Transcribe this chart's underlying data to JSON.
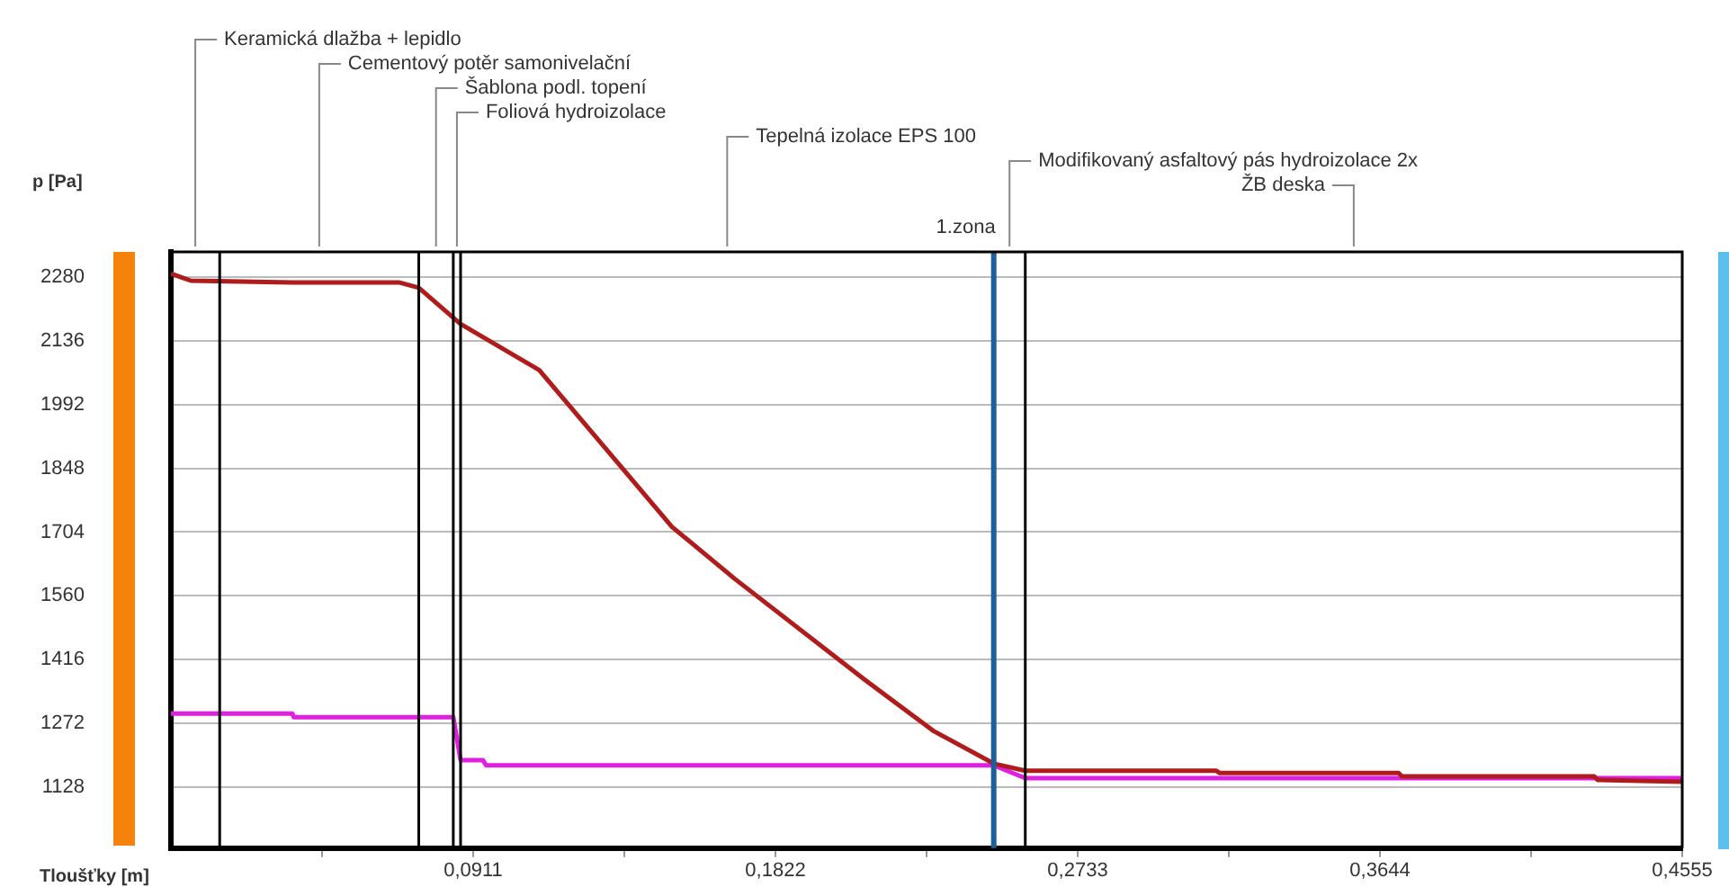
{
  "chart_data": {
    "type": "line",
    "xlabel": "Tloušťky [m]",
    "ylabel": "p [Pa]",
    "xlim": [
      0,
      0.4555
    ],
    "ylim": [
      990,
      2337
    ],
    "xticks": [
      {
        "value": 0.04555,
        "label": null
      },
      {
        "value": 0.0911,
        "label": "0,0911"
      },
      {
        "value": 0.13665,
        "label": null
      },
      {
        "value": 0.1822,
        "label": "0,1822"
      },
      {
        "value": 0.22775,
        "label": null
      },
      {
        "value": 0.2733,
        "label": "0,2733"
      },
      {
        "value": 0.31885,
        "label": null
      },
      {
        "value": 0.3644,
        "label": "0,3644"
      },
      {
        "value": 0.40995,
        "label": null
      },
      {
        "value": 0.4555,
        "label": "0,4555"
      }
    ],
    "yticks": [
      1128,
      1272,
      1416,
      1560,
      1704,
      1848,
      1992,
      2136,
      2280
    ],
    "grid": "y",
    "legend": false,
    "marker": "none",
    "line_style": "solid",
    "series": [
      {
        "color": "#b01c1c",
        "x": [
          0,
          0.003,
          0.006,
          0.0366,
          0.0687,
          0.0747,
          0.0873,
          0.111,
          0.151,
          0.17,
          0.209,
          0.23,
          0.248,
          0.2575,
          0.315,
          0.316,
          0.37,
          0.371,
          0.429,
          0.43,
          0.4555
        ],
        "values": [
          2288,
          2280,
          2272,
          2268,
          2268,
          2256,
          2174,
          2070,
          1716,
          1598,
          1371,
          1254,
          1181,
          1165,
          1165,
          1160,
          1160,
          1152,
          1152,
          1144,
          1140
        ]
      },
      {
        "color": "#e020e0",
        "x": [
          0,
          0.0366,
          0.037,
          0.0851,
          0.0873,
          0.094,
          0.095,
          0.248,
          0.2575,
          0.4555
        ],
        "values": [
          1294,
          1294,
          1286,
          1286,
          1189,
          1189,
          1177,
          1177,
          1148,
          1148
        ]
      }
    ],
    "ref_lines": [
      {
        "axis": "x",
        "value": 0.0147
      },
      {
        "axis": "x",
        "value": 0.0747
      },
      {
        "axis": "x",
        "value": 0.0851
      },
      {
        "axis": "x",
        "value": 0.0873
      },
      {
        "axis": "x",
        "value": 0.248,
        "label": "1.zona",
        "color": "#1f5f99"
      },
      {
        "axis": "x",
        "value": 0.2575
      }
    ],
    "annotations": [
      "Keramická dlažba + lepidlo",
      "Cementový potěr samonivelační",
      "Šablona podl. topení",
      "Foliová hydroizolace",
      "Tepelná izolace EPS 100",
      "Modifikovaný asfaltový pás hydroizolace 2x",
      "ŽB deska"
    ]
  }
}
